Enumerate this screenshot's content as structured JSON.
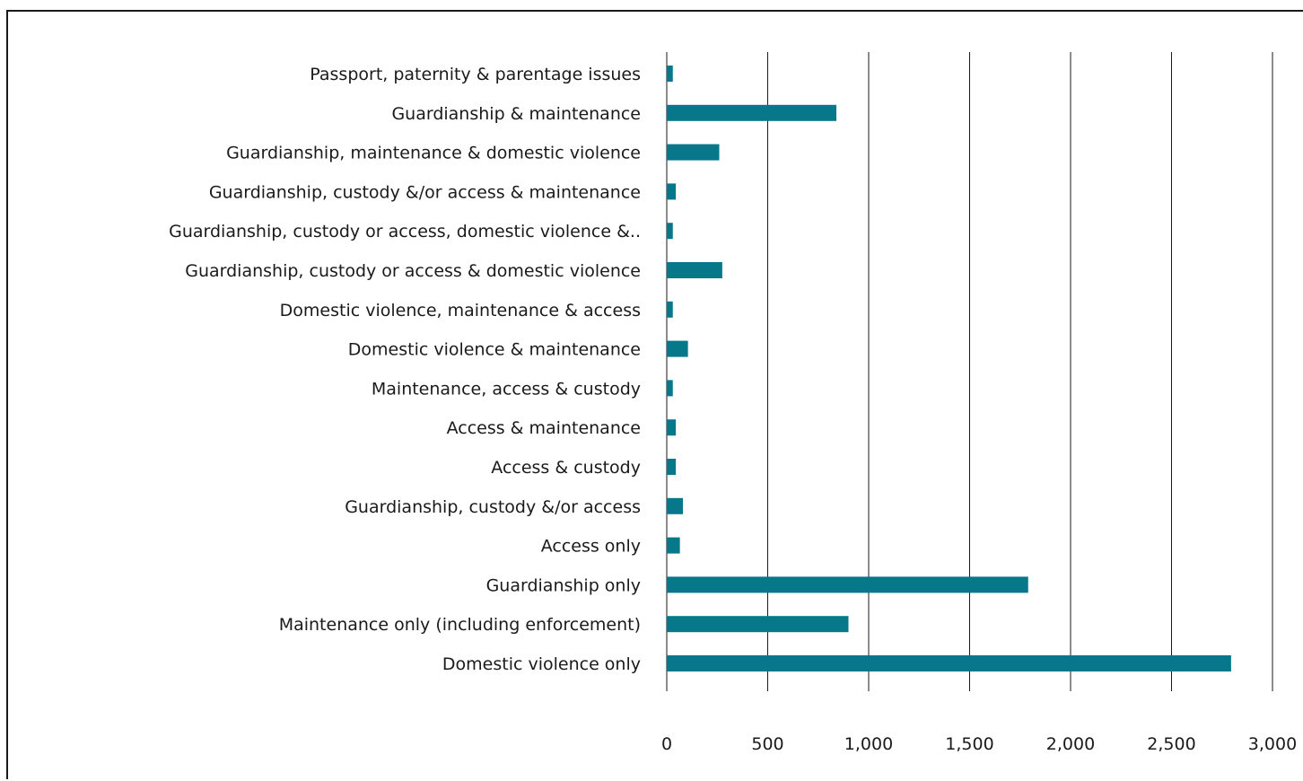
{
  "chart_data": {
    "type": "bar",
    "orientation": "horizontal",
    "title": "",
    "xlabel": "",
    "ylabel": "",
    "xlim": [
      0,
      3000
    ],
    "grid": true,
    "legend": "none",
    "colors": {
      "bar": "#06788a",
      "grid": "#1a1a1a",
      "text": "#1a1a1a"
    },
    "x_ticks": [
      "0",
      "500",
      "1,000",
      "1,500",
      "2,000",
      "2,500",
      "3,000"
    ],
    "categories": [
      "Passport, paternity & parentage issues",
      "Guardianship & maintenance",
      "Guardianship, maintenance & domestic violence",
      "Guardianship, custody &/or access & maintenance",
      "Guardianship, custody or access, domestic violence &..",
      "Guardianship, custody or access & domestic violence",
      "Domestic violence, maintenance & access",
      "Domestic violence & maintenance",
      "Maintenance, access & custody",
      "Access & maintenance",
      "Access & custody",
      "Guardianship, custody &/or access",
      "Access only",
      "Guardianship only",
      "Maintenance only (including enforcement)",
      "Domestic violence only"
    ],
    "values": [
      30,
      840,
      260,
      45,
      30,
      275,
      30,
      105,
      30,
      45,
      45,
      80,
      65,
      1790,
      900,
      2795
    ]
  }
}
